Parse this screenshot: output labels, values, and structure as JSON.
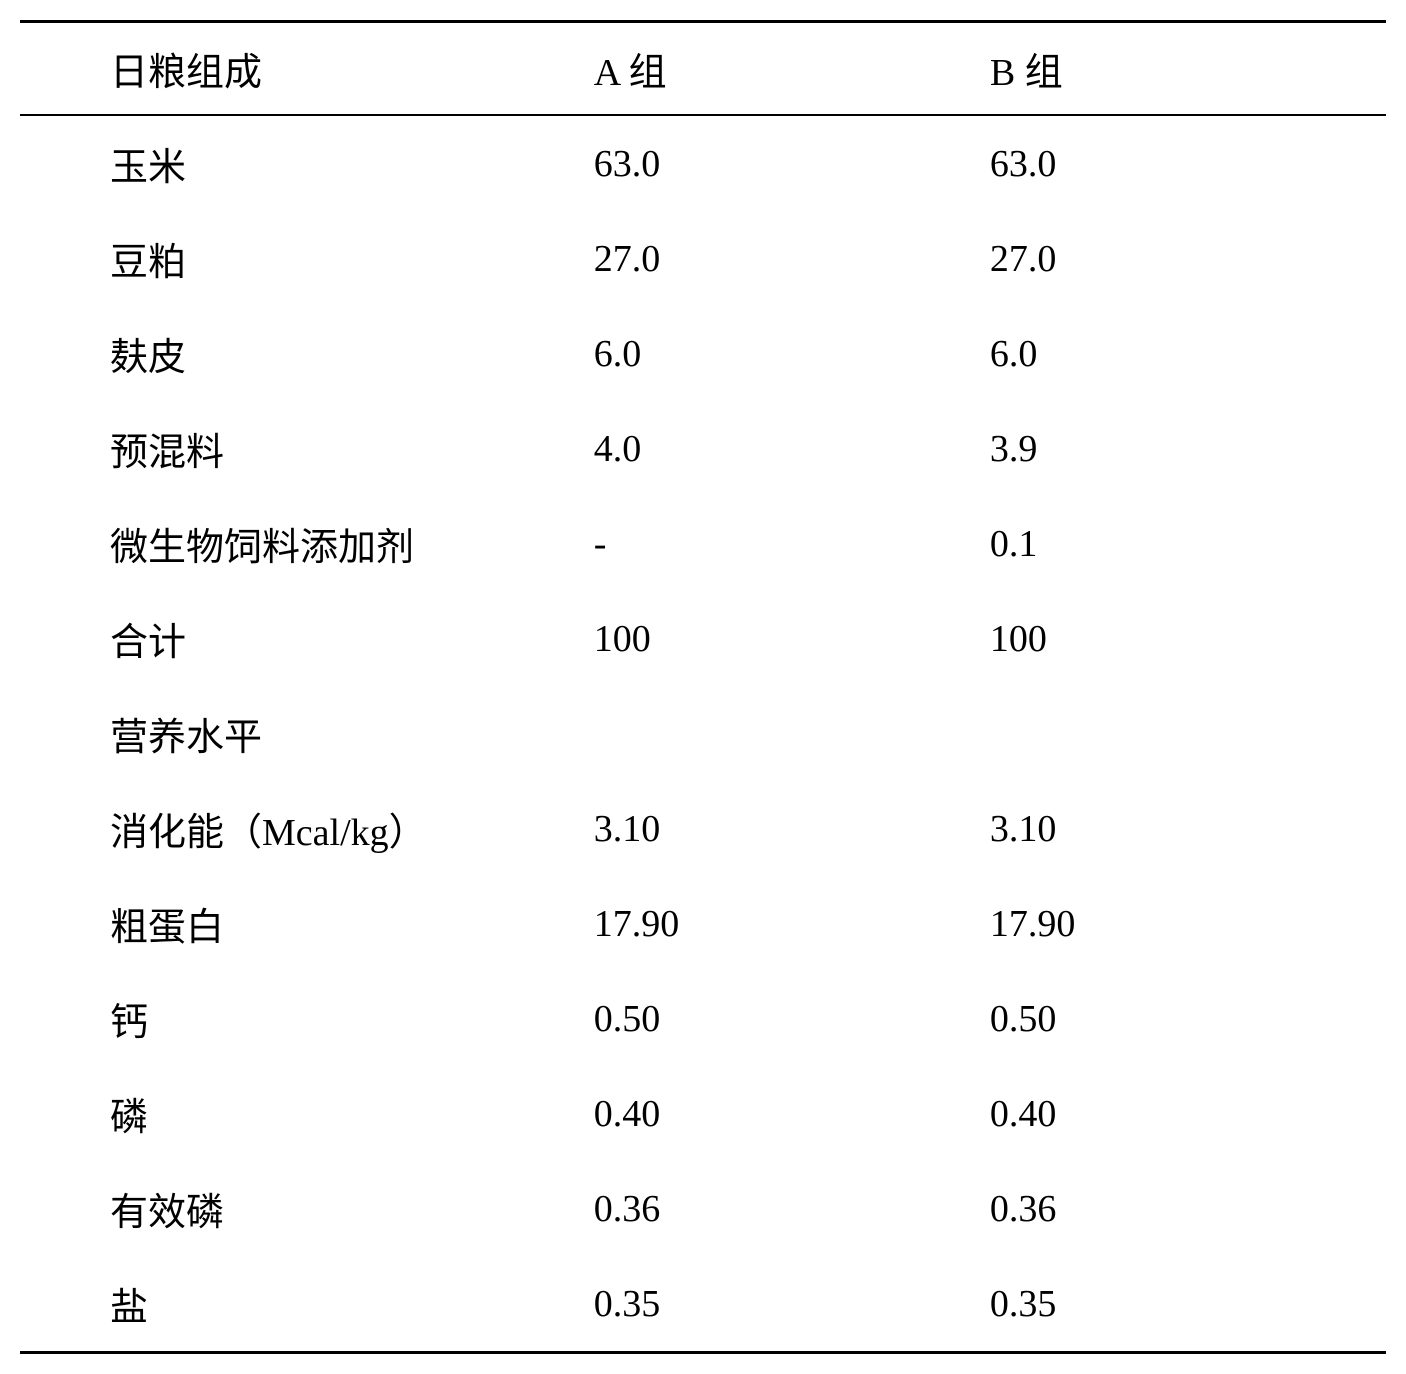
{
  "table": {
    "columns": [
      "日粮组成",
      "A 组",
      "B 组"
    ],
    "rows": [
      [
        "玉米",
        "63.0",
        "63.0"
      ],
      [
        "豆粕",
        "27.0",
        "27.0"
      ],
      [
        "麸皮",
        "6.0",
        "6.0"
      ],
      [
        "预混料",
        "4.0",
        "3.9"
      ],
      [
        "微生物饲料添加剂",
        "-",
        "0.1"
      ],
      [
        "合计",
        "100",
        "100"
      ],
      [
        "营养水平",
        "",
        ""
      ],
      [
        "消化能（Mcal/kg）",
        "3.10",
        "3.10"
      ],
      [
        "粗蛋白",
        "17.90",
        "17.90"
      ],
      [
        "钙",
        "0.50",
        "0.50"
      ],
      [
        "磷",
        "0.40",
        "0.40"
      ],
      [
        "有效磷",
        "0.36",
        "0.36"
      ],
      [
        "盐",
        "0.35",
        "0.35"
      ]
    ],
    "font_size": 38,
    "text_color": "#000000",
    "background_color": "#ffffff",
    "border_color": "#000000",
    "top_border_width": 3,
    "header_border_width": 2,
    "bottom_border_width": 3,
    "col_widths_pct": [
      42,
      29,
      29
    ],
    "first_col_padding_left": 90,
    "row_padding_vertical": 20
  }
}
